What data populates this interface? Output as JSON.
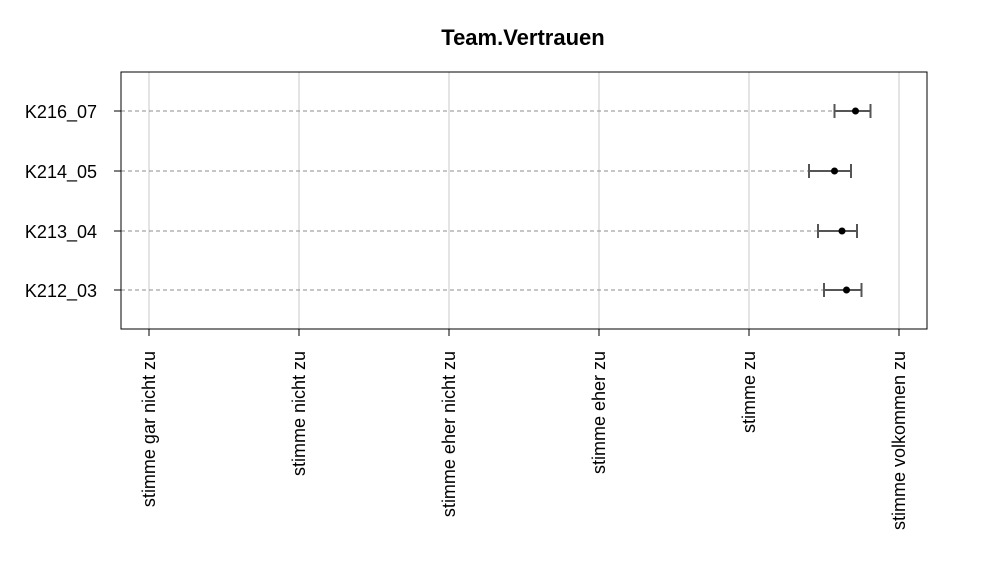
{
  "chart_data": {
    "type": "dot-errorbar",
    "title": "Team.Vertrauen",
    "xlabel": "",
    "ylabel": "",
    "x_scale": [
      1,
      6
    ],
    "x_ticks": [
      {
        "value": 1,
        "label": "stimme gar nicht zu"
      },
      {
        "value": 2,
        "label": "stimme nicht zu"
      },
      {
        "value": 3,
        "label": "stimme eher nicht zu"
      },
      {
        "value": 4,
        "label": "stimme eher zu"
      },
      {
        "value": 5,
        "label": "stimme zu"
      },
      {
        "value": 6,
        "label": "stimme volkommen zu"
      }
    ],
    "series": [
      {
        "name": "K216_07",
        "mean": 5.71,
        "lower": 5.57,
        "upper": 5.81
      },
      {
        "name": "K214_05",
        "mean": 5.57,
        "lower": 5.4,
        "upper": 5.68
      },
      {
        "name": "K213_04",
        "mean": 5.62,
        "lower": 5.46,
        "upper": 5.72
      },
      {
        "name": "K212_03",
        "mean": 5.65,
        "lower": 5.5,
        "upper": 5.75
      }
    ],
    "grid": true,
    "colors": {
      "point": "#000000",
      "errorbar": "#555555",
      "grid": "#c8c8c8",
      "dash": "#8c8c8c",
      "frame": "#000000"
    }
  }
}
